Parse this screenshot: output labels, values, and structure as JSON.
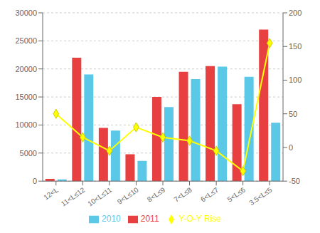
{
  "chart_data": {
    "type": "bar",
    "categories": [
      "12<L",
      "11<L≤12",
      "10<L≤11",
      "9<L≤10",
      "8<L≤9",
      "7<L≤8",
      "6<L≤7",
      "5<L≤6",
      "3.5<L≤5"
    ],
    "series": [
      {
        "name": "2011",
        "color": "#e84040",
        "values": [
          400,
          22000,
          9500,
          4800,
          15000,
          19500,
          20500,
          13700,
          27000
        ]
      },
      {
        "name": "2010",
        "color": "#5bc8e8",
        "values": [
          300,
          19000,
          9000,
          3600,
          13200,
          18200,
          20400,
          18600,
          10400
        ]
      },
      {
        "name": "Y-O-Y Rise",
        "color": "#ffff00",
        "values": [
          50,
          15,
          -5,
          30,
          15,
          10,
          -5,
          -35,
          155
        ],
        "axis": "y2",
        "type": "line",
        "marker": "diamond"
      }
    ],
    "ylim": [
      0,
      30000
    ],
    "yticks": [
      0,
      5000,
      10000,
      15000,
      20000,
      25000,
      30000
    ],
    "y2lim": [
      -50,
      200
    ],
    "y2ticks": [
      -50,
      0,
      50,
      100,
      150,
      200
    ],
    "grid": true,
    "legend": "bottom"
  }
}
